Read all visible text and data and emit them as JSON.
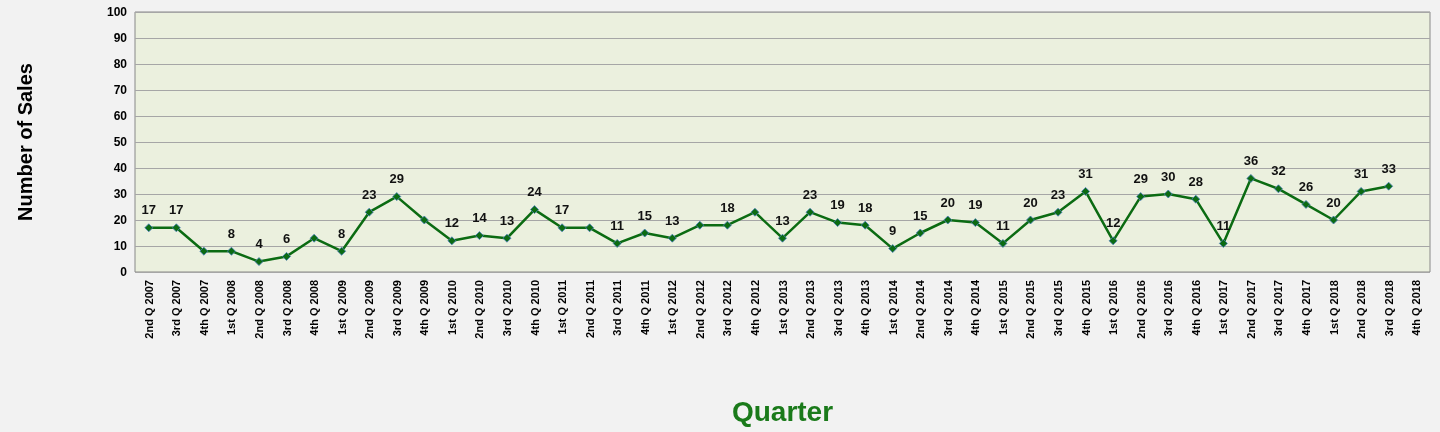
{
  "chart_data": {
    "type": "line",
    "xlabel": "Quarter",
    "ylabel": "Number of Sales",
    "categories": [
      "2nd Q 2007",
      "3rd Q 2007",
      "4th Q 2007",
      "1st Q 2008",
      "2nd Q 2008",
      "3rd Q 2008",
      "4th Q 2008",
      "1st Q 2009",
      "2nd Q 2009",
      "3rd Q 2009",
      "4th Q 2009",
      "1st Q 2010",
      "2nd Q 2010",
      "3rd Q 2010",
      "4th Q 2010",
      "1st Q 2011",
      "2nd Q 2011",
      "3rd Q 2011",
      "4th Q 2011",
      "1st Q 2012",
      "2nd Q 2012",
      "3rd Q 2012",
      "4th Q 2012",
      "1st Q 2013",
      "2nd Q 2013",
      "3rd Q 2013",
      "4th Q 2013",
      "1st Q 2014",
      "2nd Q 2014",
      "3rd Q 2014",
      "4th Q 2014",
      "1st Q 2015",
      "2nd Q 2015",
      "3rd Q 2015",
      "4th Q 2015",
      "1st Q 2016",
      "2nd Q 2016",
      "3rd Q 2016",
      "4th Q 2016",
      "1st Q 2017",
      "2nd Q 2017",
      "3rd Q 2017",
      "4th Q 2017",
      "1st Q 2018",
      "2nd Q 2018",
      "3rd Q 2018",
      "4th Q 2018"
    ],
    "series": [
      {
        "color": "#0b6b12",
        "values": [
          17,
          17,
          8,
          8,
          4,
          6,
          13,
          8,
          23,
          29,
          20,
          12,
          14,
          13,
          24,
          17,
          17,
          11,
          15,
          13,
          18,
          18,
          23,
          13,
          23,
          19,
          18,
          9,
          15,
          20,
          19,
          11,
          20,
          23,
          31,
          12,
          29,
          30,
          28,
          11,
          36,
          32,
          26,
          20,
          31,
          33,
          null
        ],
        "value_labels": [
          "17",
          "17",
          null,
          "8",
          "4",
          "6",
          null,
          "8",
          "23",
          "29",
          null,
          "12",
          "14",
          "13",
          "24",
          "17",
          null,
          "11",
          "15",
          "13",
          null,
          "18",
          null,
          "13",
          "23",
          "19",
          "18",
          "9",
          "15",
          "20",
          "19",
          "11",
          "20",
          "23",
          "31",
          "12",
          "29",
          "30",
          "28",
          "11",
          "36",
          "32",
          "26",
          "20",
          "31",
          "33",
          null
        ]
      }
    ],
    "ylim": [
      0,
      100
    ],
    "yticks": [
      0,
      10,
      20,
      30,
      40,
      50,
      60,
      70,
      80,
      90,
      100
    ],
    "grid": "y",
    "marker": "diamond",
    "line_style": "solid"
  }
}
